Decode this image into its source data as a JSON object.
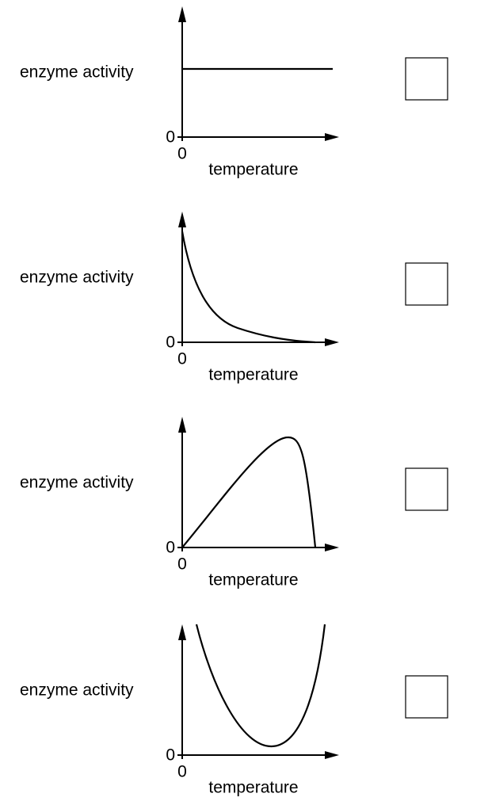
{
  "items": [
    {
      "y_label": "enzyme activity",
      "y_origin": "0",
      "x_origin": "0",
      "x_label": "temperature"
    },
    {
      "y_label": "enzyme activity",
      "y_origin": "0",
      "x_origin": "0",
      "x_label": "temperature"
    },
    {
      "y_label": "enzyme activity",
      "y_origin": "0",
      "x_origin": "0",
      "x_label": "temperature"
    },
    {
      "y_label": "enzyme activity",
      "y_origin": "0",
      "x_origin": "0",
      "x_label": "temperature"
    }
  ]
}
